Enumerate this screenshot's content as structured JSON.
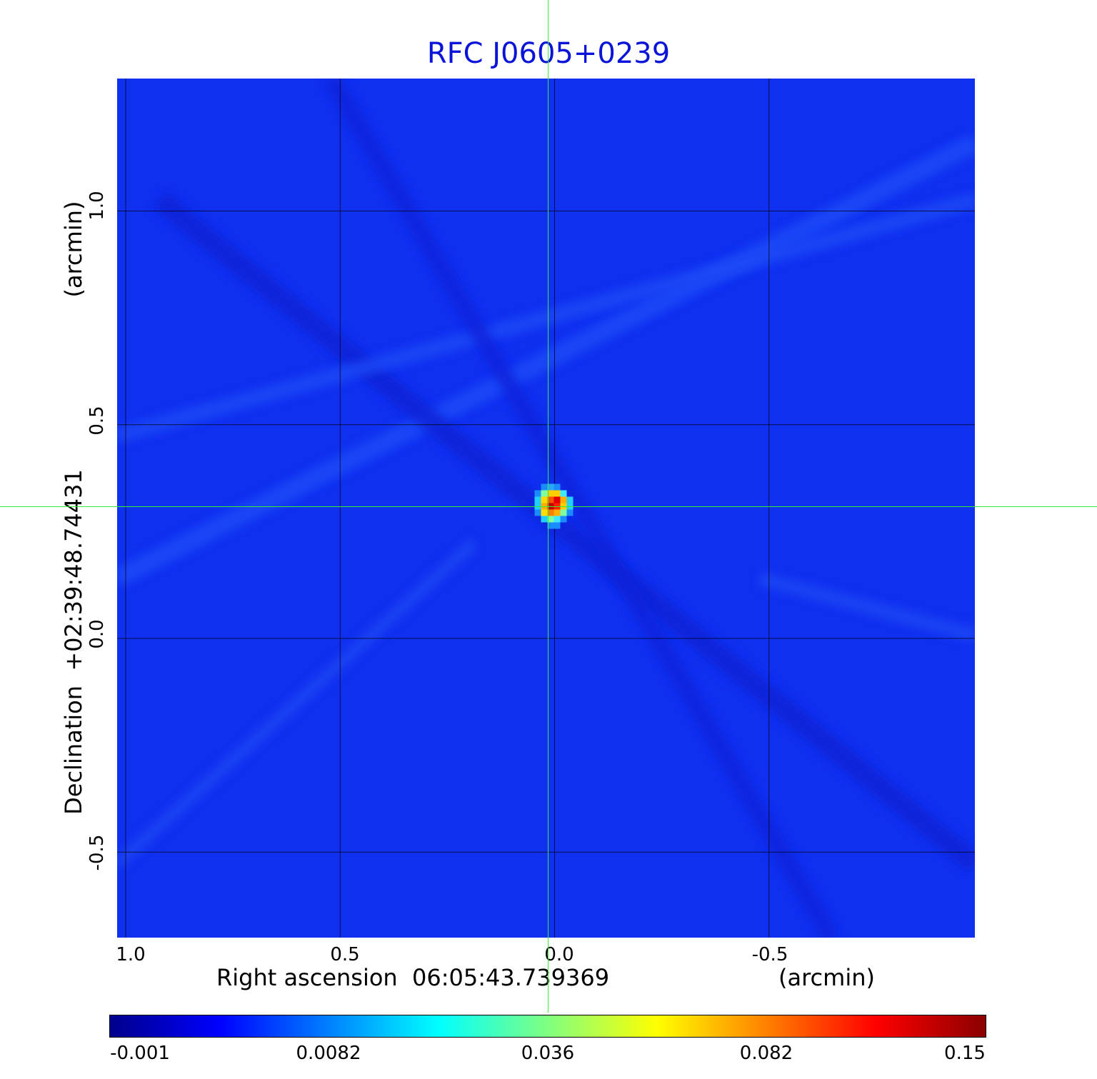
{
  "title": "RFC J0605+0239",
  "x_axis": {
    "label": "Right ascension  06:05:43.739369",
    "unit": "(arcmin)",
    "ticks": [
      "1.0",
      "0.5",
      "0.0",
      "-0.5"
    ],
    "range_arcmin": [
      1.0,
      -1.0
    ]
  },
  "y_axis": {
    "label": "Declination  +02:39:48.74431",
    "unit": "(arcmin)",
    "ticks": [
      "1.0",
      "0.5",
      "0.0",
      "-0.5"
    ],
    "range_arcmin": [
      -0.7,
      1.31
    ]
  },
  "colorbar": {
    "ticks": [
      "-0.001",
      "0.0082",
      "0.036",
      "0.082",
      "0.15"
    ],
    "colormap": "jet",
    "colors": [
      "#00008b",
      "#0000ff",
      "#0080ff",
      "#00ffff",
      "#80ff80",
      "#ffff00",
      "#ff8000",
      "#ff0000",
      "#8b0000"
    ]
  },
  "source": {
    "ra_offset_arcmin": 0.0,
    "dec_offset_arcmin": 0.31
  },
  "colors": {
    "title": "#0a14d8",
    "background": "#1030f0",
    "crosshair": "#33ee33",
    "grid": "#000000"
  }
}
